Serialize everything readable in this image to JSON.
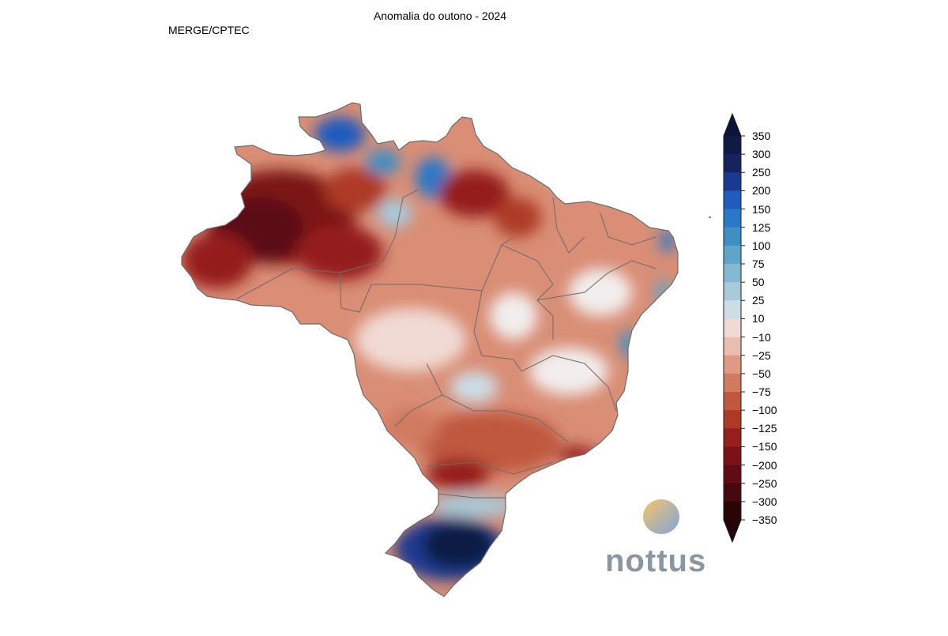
{
  "title": "Anomalia do outono - 2024",
  "source": "MERGE/CPTEC",
  "colorbar": {
    "labels": [
      "350",
      "300",
      "250",
      "200",
      "150",
      "125",
      "100",
      "75",
      "50",
      "25",
      "10",
      "−10",
      "−25",
      "−50",
      "−75",
      "−100",
      "−125",
      "−150",
      "−200",
      "−250",
      "−300",
      "−350"
    ],
    "colors": [
      "#111a45",
      "#16235f",
      "#1b3a8f",
      "#1e5cbd",
      "#2a78c8",
      "#3f8fc4",
      "#5fa5c9",
      "#86b9d1",
      "#a8cbdb",
      "#ccdde6",
      "#f2eeee",
      "#f1dad4",
      "#e9beb0",
      "#dd9a85",
      "#d07a61",
      "#c0583f",
      "#ad3a25",
      "#951f1a",
      "#7c1218",
      "#600c14",
      "#470810",
      "#2a0508"
    ],
    "pos_tip_color": "#0d1438",
    "neg_tip_color": "#22040a"
  },
  "logo": {
    "text": "nottus",
    "gradient_start": "#f5c46a",
    "gradient_end": "#7fa6dc"
  },
  "colors": {
    "border": "#6b6b6b"
  }
}
